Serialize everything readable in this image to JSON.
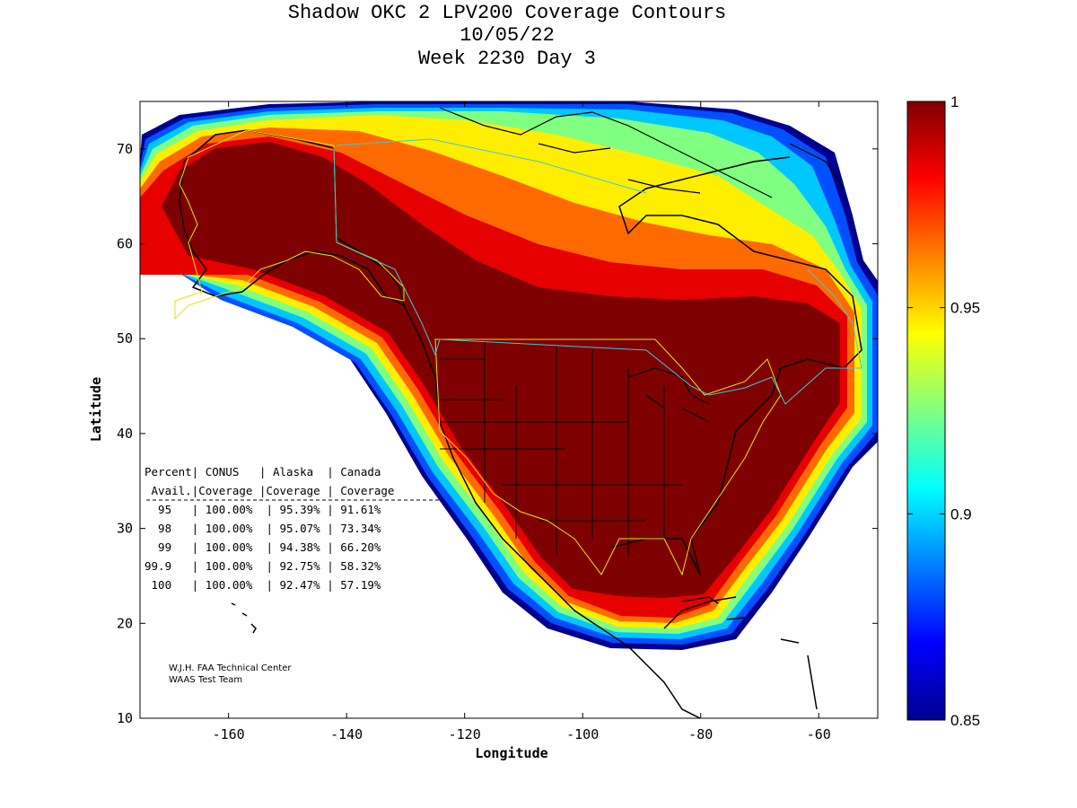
{
  "title": {
    "line1": "Shadow OKC 2 LPV200 Coverage Contours",
    "line2": "10/05/22",
    "line3": "Week 2230 Day 3"
  },
  "axes": {
    "xlabel": "Longitude",
    "ylabel": "Latitude",
    "xlim": [
      -175,
      -50
    ],
    "ylim": [
      10,
      75
    ],
    "xticks": [
      -160,
      -140,
      -120,
      -100,
      -80,
      -60
    ],
    "yticks": [
      10,
      20,
      30,
      40,
      50,
      60,
      70
    ]
  },
  "colorbar": {
    "range": [
      0.85,
      1.0
    ],
    "ticks": [
      "1",
      "0.95",
      "0.9",
      "0.85"
    ],
    "colormap": "jet"
  },
  "table": {
    "header1": "Percent| CONUS   | Alaska  | Canada",
    "header2": " Avail.|Coverage |Coverage | Coverage",
    "rows": [
      "  95   | 100.00%  | 95.39% | 91.61%",
      "  98   | 100.00%  | 95.07% | 73.34%",
      "  99   | 100.00%  | 94.38% | 66.20%",
      "99.9   | 100.00%  | 92.75% | 58.32%",
      " 100   | 100.00%  | 92.47% | 57.19%"
    ]
  },
  "credit": {
    "line1": "W.J.H. FAA Technical Center",
    "line2": "WAAS Test Team"
  },
  "coverage_data": {
    "quantity": "LPV200 availability",
    "levels_percent": [
      95,
      98,
      99,
      99.9,
      100
    ],
    "conus_coverage_percent": [
      100.0,
      100.0,
      100.0,
      100.0,
      100.0
    ],
    "alaska_coverage_percent": [
      95.39,
      95.07,
      94.38,
      92.75,
      92.47
    ],
    "canada_coverage_percent": [
      91.61,
      73.34,
      66.2,
      58.32,
      57.19
    ]
  },
  "colors": {
    "deep_red": "#7f0000",
    "service_boundary": "#e6e600",
    "canada_boundary": "#40c8d8",
    "coast": "#000000"
  }
}
